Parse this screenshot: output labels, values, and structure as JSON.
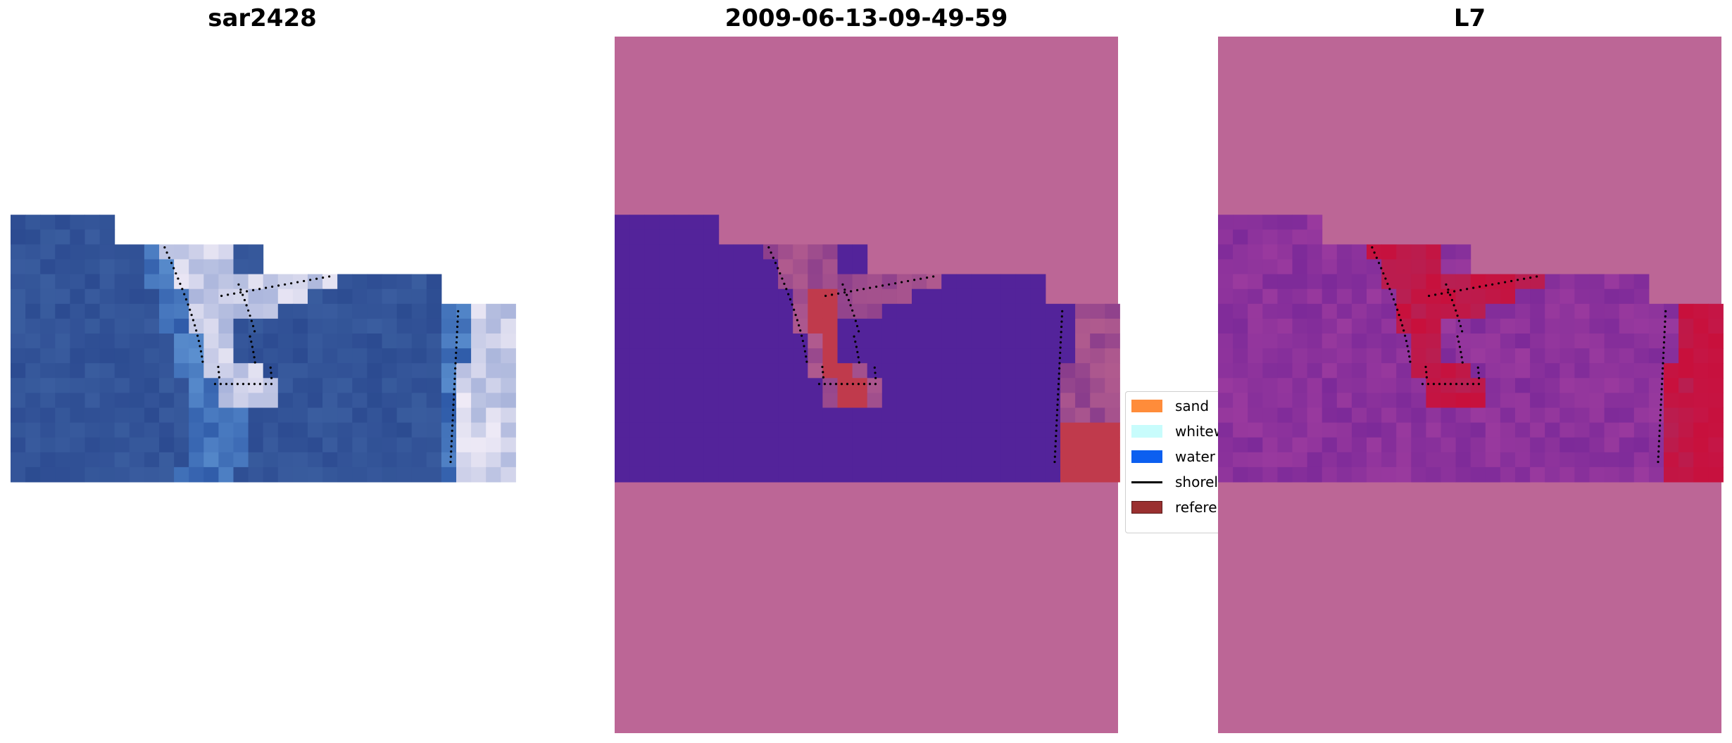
{
  "chart_data": [
    {
      "type": "heatmap",
      "title": "sar2428",
      "image_kind": "rgb-satellite-tile",
      "grid": false,
      "axes_visible": false
    },
    {
      "type": "heatmap",
      "title": "2009-06-13-09-49-59",
      "image_kind": "classified-overlay",
      "grid": false,
      "axes_visible": false,
      "legend": {
        "placement": "right",
        "items": [
          {
            "label": "sand",
            "color": "#ff8c3a",
            "kind": "patch"
          },
          {
            "label": "whitew",
            "color": "#c8fcfc",
            "kind": "patch"
          },
          {
            "label": "water",
            "color": "#0c5ff0",
            "kind": "patch"
          },
          {
            "label": "shorel",
            "color": "#000000",
            "kind": "line"
          },
          {
            "label": "referen",
            "color": "#9a3030",
            "kind": "patch"
          }
        ]
      }
    },
    {
      "type": "heatmap",
      "title": "L7",
      "image_kind": "probability-overlay",
      "grid": false,
      "axes_visible": false
    }
  ],
  "colors": {
    "nodata_overlay": "#bc6696",
    "water_class": "#53239a",
    "reference_region": "#c03a4c",
    "sea_rgb": "#2e4f96",
    "sand_prob_high": "#c8103c"
  }
}
